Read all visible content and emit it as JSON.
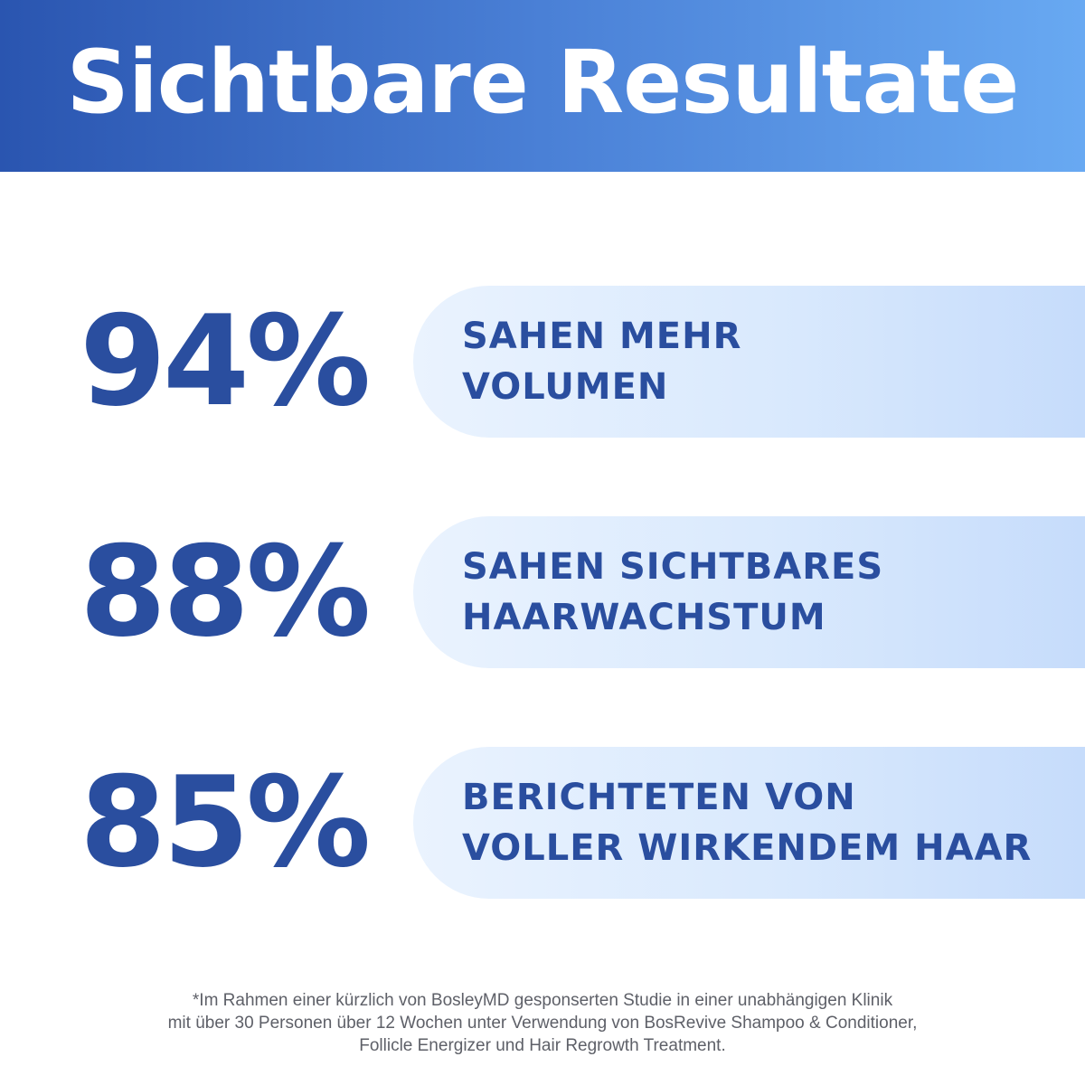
{
  "header": {
    "title": "Sichtbare Resultate",
    "gradient_start": "#2a55b0",
    "gradient_end": "#68a9f2"
  },
  "accent_color": "#2a4e9f",
  "stats": [
    {
      "value": "94%",
      "line1": "SAHEN MEHR",
      "line2": "VOLUMEN"
    },
    {
      "value": "88%",
      "line1": "SAHEN SICHTBARES",
      "line2": "HAARWACHSTUM"
    },
    {
      "value": "85%",
      "line1": "BERICHTETEN VON",
      "line2": "VOLLER WIRKENDEM HAAR"
    }
  ],
  "footnote": {
    "line1": "*Im Rahmen einer kürzlich von BosleyMD gesponserten Studie in einer unabhängigen Klinik",
    "line2": "mit über 30 Personen über 12 Wochen unter Verwendung von BosRevive Shampoo & Conditioner,",
    "line3": "Follicle Energizer und Hair Regrowth Treatment."
  }
}
